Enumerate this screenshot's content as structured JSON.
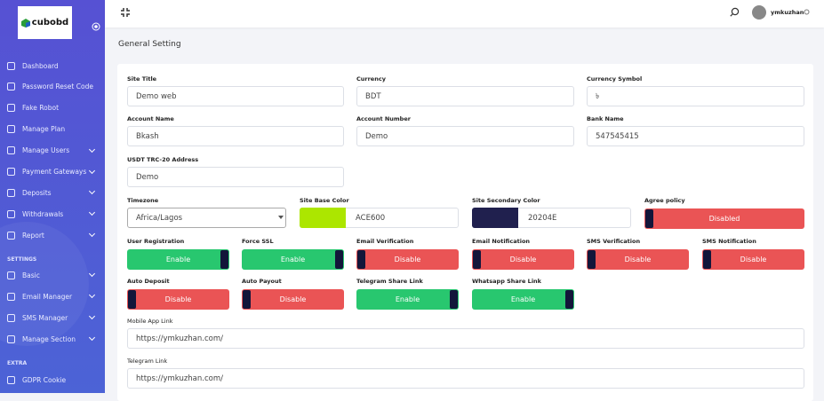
{
  "sidebar": {
    "logo": "cubobd",
    "main": [
      "Dashboard",
      "Password Reset Code",
      "Fake Robot",
      "Manage Plan",
      "Manage Users",
      "Payment Gateways",
      "Deposits",
      "Withdrawals",
      "Report"
    ],
    "settings_heading": "SETTINGS",
    "settings": [
      "Basic",
      "Email Manager",
      "SMS Manager",
      "Manage Section"
    ],
    "extra_heading": "EXTRA",
    "extra": [
      "GDPR Cookie"
    ]
  },
  "topbar": {
    "username": "ymkuzhan"
  },
  "page": {
    "title": "General Setting"
  },
  "form": {
    "text_fields": [
      {
        "label": "Site Title",
        "value": "Demo web"
      },
      {
        "label": "Currency",
        "value": "BDT"
      },
      {
        "label": "Currency Symbol",
        "value": "৳"
      },
      {
        "label": "Account Name",
        "value": "Bkash"
      },
      {
        "label": "Account Number",
        "value": "Demo"
      },
      {
        "label": "Bank Name",
        "value": "547545415"
      },
      {
        "label": "USDT TRC-20 Address",
        "value": "Demo"
      }
    ],
    "timezone": {
      "label": "Timezone",
      "value": "Africa/Lagos"
    },
    "colors": [
      {
        "label": "Site Base Color",
        "value": "ACE600"
      },
      {
        "label": "Site Secondary Color",
        "value": "20204E"
      }
    ],
    "toggles": [
      {
        "label": "Agree policy",
        "state": "Disabled"
      },
      {
        "label": "User Registration",
        "state": "Enable"
      },
      {
        "label": "Force SSL",
        "state": "Enable"
      },
      {
        "label": "Email Verification",
        "state": "Disable"
      },
      {
        "label": "Email Notification",
        "state": "Disable"
      },
      {
        "label": "SMS Verification",
        "state": "Disable"
      },
      {
        "label": "SMS Notification",
        "state": "Disable"
      },
      {
        "label": "Auto Deposit",
        "state": "Disable"
      },
      {
        "label": "Auto Payout",
        "state": "Disable"
      },
      {
        "label": "Telegram Share Link",
        "state": "Enable"
      },
      {
        "label": "Whatsapp Share Link",
        "state": "Enable"
      }
    ],
    "links": [
      {
        "label": "Mobile App Link",
        "value": "https://ymkuzhan.com/"
      },
      {
        "label": "Telegram Link",
        "value": "https://ymkuzhan.com/"
      }
    ]
  }
}
